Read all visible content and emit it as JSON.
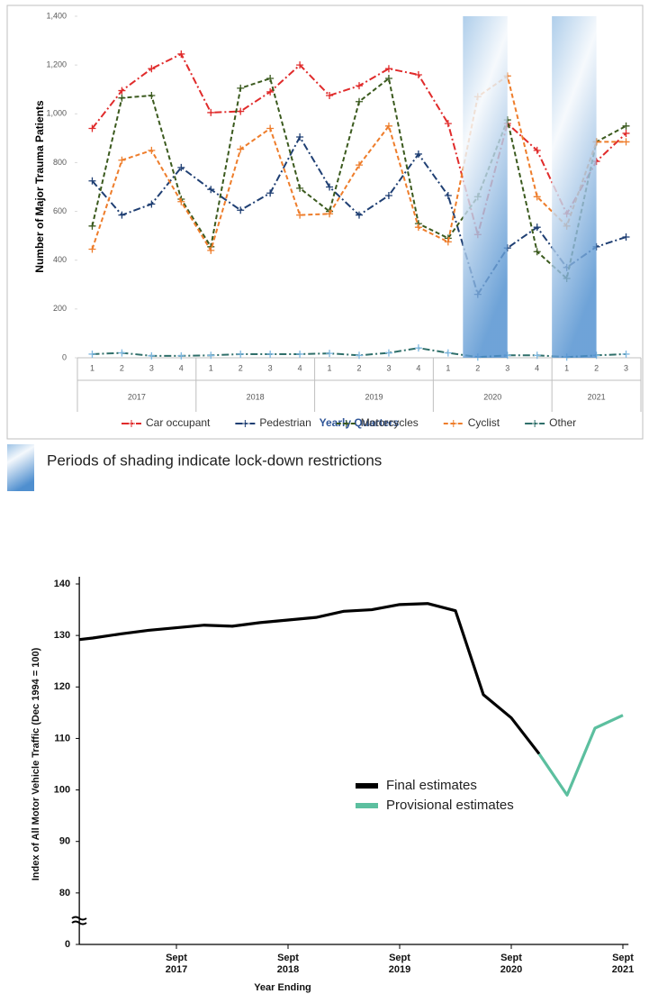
{
  "chart_data": [
    {
      "type": "line",
      "y_label": "Number of Major Trauma Patients",
      "x_label": "Yearly Quarters",
      "categories": [
        "1",
        "2",
        "3",
        "4",
        "1",
        "2",
        "3",
        "4",
        "1",
        "2",
        "3",
        "4",
        "1",
        "2",
        "3",
        "4",
        "1",
        "2",
        "3"
      ],
      "category_groups": [
        "2017",
        "2018",
        "2019",
        "2020",
        "2021"
      ],
      "ylim": [
        0,
        1400
      ],
      "yticks": [
        0,
        200,
        400,
        600,
        800,
        {
          "value": 1000,
          "label": "1,000"
        },
        {
          "value": 1200,
          "label": "1,200"
        },
        {
          "value": 1400,
          "label": "1,400"
        }
      ],
      "grid": false,
      "legend": "bottom",
      "note": "Periods of shading indicate lock-down restrictions",
      "series": [
        {
          "name": "Car occupant",
          "color": "#e02b2b",
          "style": "dash-dot",
          "values": [
            940,
            1095,
            1185,
            1245,
            1005,
            1010,
            1090,
            1200,
            1075,
            1115,
            1185,
            1160,
            960,
            505,
            960,
            850,
            590,
            805,
            920
          ]
        },
        {
          "name": "Pedestrian",
          "color": "#1f3f73",
          "style": "dash-dot",
          "values": [
            725,
            585,
            630,
            780,
            690,
            605,
            675,
            905,
            700,
            585,
            665,
            835,
            665,
            260,
            450,
            535,
            370,
            455,
            495
          ]
        },
        {
          "name": "Motorcycles",
          "color": "#3b5a1e",
          "style": "dashed",
          "values": [
            540,
            1065,
            1075,
            650,
            455,
            1105,
            1145,
            695,
            600,
            1050,
            1145,
            550,
            490,
            660,
            975,
            435,
            325,
            885,
            950
          ]
        },
        {
          "name": "Cyclist",
          "color": "#ee7d2b",
          "style": "dashed",
          "values": [
            445,
            810,
            850,
            640,
            440,
            855,
            940,
            585,
            590,
            790,
            950,
            535,
            475,
            1070,
            1155,
            660,
            540,
            885,
            885
          ]
        },
        {
          "name": "Other",
          "color": "#2f6f6a",
          "style": "dash-dot",
          "values": [
            15,
            20,
            8,
            8,
            10,
            15,
            15,
            15,
            18,
            10,
            20,
            40,
            20,
            3,
            10,
            10,
            3,
            10,
            15
          ]
        }
      ]
    },
    {
      "type": "line",
      "y_label": "Index of All Motor Vehicle Traffic (Dec 1994 = 100)",
      "x_label": "Year Ending",
      "xlim": [
        2016.88,
        2021.8
      ],
      "xticks": [
        {
          "value": 2017.75,
          "label": "Sept 2017"
        },
        {
          "value": 2018.75,
          "label": "Sept 2018"
        },
        {
          "value": 2019.75,
          "label": "Sept 2019"
        },
        {
          "value": 2020.75,
          "label": "Sept 2020"
        },
        {
          "value": 2021.75,
          "label": "Sept 2021"
        }
      ],
      "ylim": [
        70,
        140
      ],
      "yticks": [
        0,
        80,
        90,
        100,
        110,
        120,
        130,
        140
      ],
      "axis_break": true,
      "legend": "inside",
      "series": [
        {
          "name": "Final estimates",
          "color": "#000000",
          "x": [
            2016.88,
            2017.0,
            2017.25,
            2017.5,
            2017.75,
            2018.0,
            2018.25,
            2018.5,
            2018.75,
            2019.0,
            2019.25,
            2019.5,
            2019.75,
            2020.0,
            2020.25,
            2020.5,
            2020.75,
            2021.0
          ],
          "values": [
            129.2,
            129.5,
            130.3,
            131,
            131.5,
            132,
            131.8,
            132.5,
            133,
            133.5,
            134.7,
            135,
            136,
            136.2,
            134.8,
            118.5,
            114,
            107
          ]
        },
        {
          "name": "Provisional estimates",
          "color": "#5cbf9f",
          "x": [
            2021.0,
            2021.25,
            2021.5,
            2021.75
          ],
          "values": [
            107,
            99,
            112,
            114.5
          ]
        }
      ]
    }
  ]
}
